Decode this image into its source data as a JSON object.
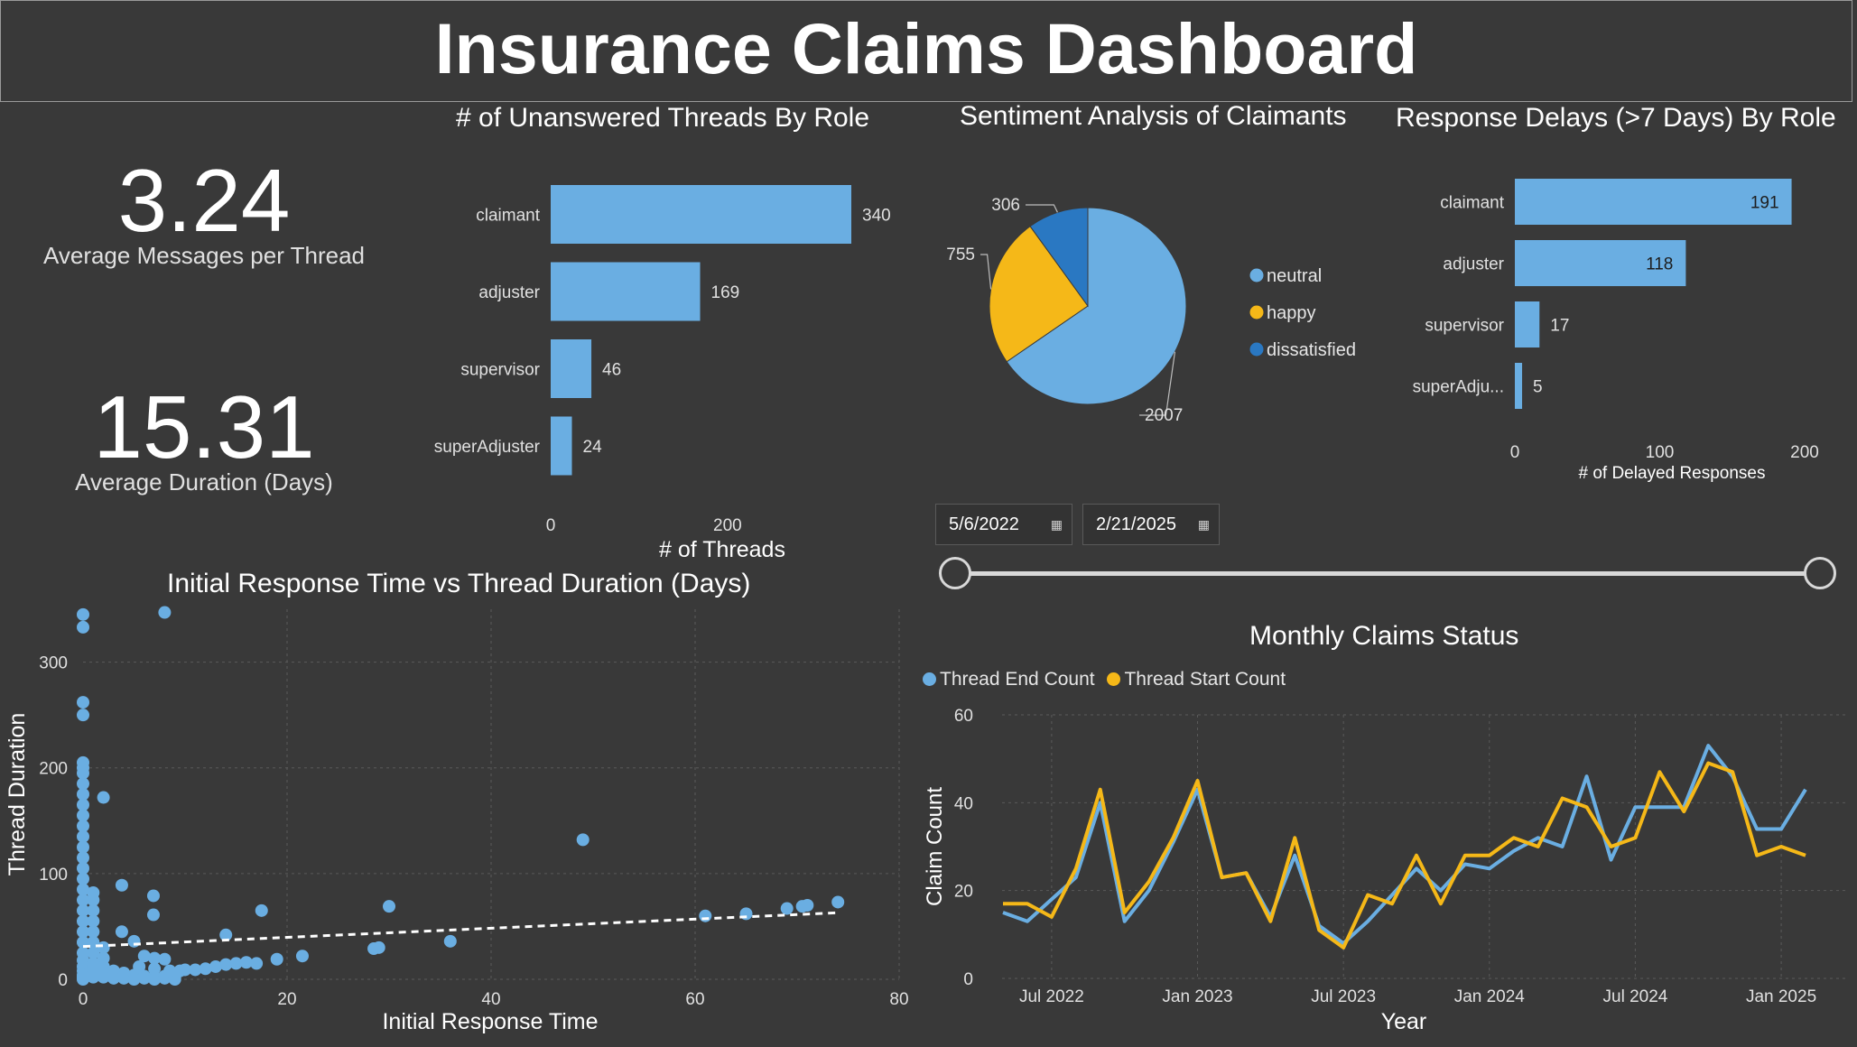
{
  "title": "Insurance Claims Dashboard",
  "kpis": [
    {
      "value": "3.24",
      "label": "Average Messages per Thread"
    },
    {
      "value": "15.31",
      "label": "Average Duration (Days)"
    }
  ],
  "colors": {
    "blue": "#6aaee2",
    "gold": "#f5b818",
    "darkblue": "#2a78c2",
    "background": "#393939"
  },
  "date_slicer": {
    "start": "5/6/2022",
    "end": "2/21/2025",
    "calendar_icon": "calendar-icon"
  },
  "chart_data": [
    {
      "id": "unanswered",
      "type": "bar",
      "orientation": "horizontal",
      "title": "# of Unanswered Threads By Role",
      "categories": [
        "claimant",
        "adjuster",
        "supervisor",
        "superAdjuster"
      ],
      "values": [
        340,
        169,
        46,
        24
      ],
      "xlabel": "# of Threads",
      "ylabel": "",
      "xlim": [
        0,
        340
      ],
      "xticks": [
        0,
        200
      ]
    },
    {
      "id": "sentiment",
      "type": "pie",
      "title": "Sentiment Analysis of Claimants",
      "categories": [
        "neutral",
        "happy",
        "dissatisfied"
      ],
      "values": [
        2007,
        755,
        306
      ],
      "legend_position": "right"
    },
    {
      "id": "delays",
      "type": "bar",
      "orientation": "horizontal",
      "title": "Response Delays (>7 Days) By Role",
      "categories": [
        "claimant",
        "adjuster",
        "supervisor",
        "superAdju..."
      ],
      "values": [
        191,
        118,
        17,
        5
      ],
      "xlabel": "# of Delayed Responses",
      "ylabel": "",
      "xlim": [
        0,
        200
      ],
      "xticks": [
        0,
        100,
        200
      ]
    },
    {
      "id": "scatter",
      "type": "scatter",
      "title": "Initial Response Time vs Thread Duration (Days)",
      "xlabel": "Initial Response Time",
      "ylabel": "Thread Duration",
      "xlim": [
        0,
        80
      ],
      "ylim": [
        0,
        350
      ],
      "xticks": [
        0,
        20,
        40,
        60,
        80
      ],
      "yticks": [
        0,
        100,
        200,
        300
      ],
      "grid": true,
      "trendline": {
        "x": [
          0,
          74
        ],
        "y": [
          31,
          63
        ]
      },
      "points": [
        [
          0,
          345
        ],
        [
          0,
          333
        ],
        [
          8,
          347
        ],
        [
          0,
          262
        ],
        [
          0,
          250
        ],
        [
          0,
          205
        ],
        [
          0,
          200
        ],
        [
          0,
          195
        ],
        [
          0,
          185
        ],
        [
          0,
          175
        ],
        [
          0,
          165
        ],
        [
          0,
          155
        ],
        [
          0,
          145
        ],
        [
          0,
          135
        ],
        [
          0,
          125
        ],
        [
          0,
          115
        ],
        [
          0,
          105
        ],
        [
          0,
          95
        ],
        [
          0,
          85
        ],
        [
          0,
          75
        ],
        [
          0,
          65
        ],
        [
          0,
          55
        ],
        [
          0,
          45
        ],
        [
          0,
          35
        ],
        [
          0,
          25
        ],
        [
          0,
          18
        ],
        [
          0,
          12
        ],
        [
          0,
          8
        ],
        [
          0,
          4
        ],
        [
          0,
          2
        ],
        [
          0,
          0
        ],
        [
          2,
          172
        ],
        [
          1,
          82
        ],
        [
          1,
          75
        ],
        [
          1,
          65
        ],
        [
          1,
          55
        ],
        [
          1,
          45
        ],
        [
          1,
          35
        ],
        [
          1,
          25
        ],
        [
          1,
          15
        ],
        [
          1,
          10
        ],
        [
          1,
          5
        ],
        [
          1,
          2
        ],
        [
          2,
          30
        ],
        [
          2,
          20
        ],
        [
          2,
          12
        ],
        [
          2,
          8
        ],
        [
          2,
          5
        ],
        [
          2,
          2
        ],
        [
          3,
          8
        ],
        [
          3,
          4
        ],
        [
          3,
          1
        ],
        [
          4,
          6
        ],
        [
          4,
          3
        ],
        [
          4,
          1
        ],
        [
          5,
          4
        ],
        [
          5,
          2
        ],
        [
          5,
          0
        ],
        [
          6,
          3
        ],
        [
          6,
          1
        ],
        [
          7,
          2
        ],
        [
          7,
          0
        ],
        [
          8,
          3
        ],
        [
          8,
          1
        ],
        [
          9,
          2
        ],
        [
          9,
          0
        ],
        [
          3.8,
          89
        ],
        [
          6.9,
          79
        ],
        [
          6.9,
          61
        ],
        [
          3.8,
          45
        ],
        [
          5,
          36
        ],
        [
          6,
          22
        ],
        [
          7,
          20
        ],
        [
          8,
          19
        ],
        [
          5.5,
          12
        ],
        [
          7,
          10
        ],
        [
          8.5,
          8
        ],
        [
          9.5,
          8
        ],
        [
          10,
          9
        ],
        [
          11,
          9
        ],
        [
          12,
          10
        ],
        [
          13,
          12
        ],
        [
          14,
          14
        ],
        [
          15,
          15
        ],
        [
          16,
          16
        ],
        [
          17,
          15
        ],
        [
          14,
          42
        ],
        [
          17.5,
          65
        ],
        [
          19,
          19
        ],
        [
          21.5,
          22
        ],
        [
          28.5,
          29
        ],
        [
          29,
          30
        ],
        [
          30,
          69
        ],
        [
          36,
          36
        ],
        [
          49,
          132
        ],
        [
          61,
          60
        ],
        [
          65,
          62
        ],
        [
          69,
          67
        ],
        [
          70.5,
          69
        ],
        [
          71,
          70
        ],
        [
          74,
          73
        ]
      ]
    },
    {
      "id": "monthly",
      "type": "line",
      "title": "Monthly Claims Status",
      "xlabel": "Year",
      "ylabel": "Claim Count",
      "ylim": [
        0,
        60
      ],
      "yticks": [
        0,
        20,
        40,
        60
      ],
      "x_tick_labels": [
        "Jul 2022",
        "Jan 2023",
        "Jul 2023",
        "Jan 2024",
        "Jul 2024",
        "Jan 2025"
      ],
      "x": [
        "2022-05",
        "2022-06",
        "2022-07",
        "2022-08",
        "2022-09",
        "2022-10",
        "2022-11",
        "2022-12",
        "2023-01",
        "2023-02",
        "2023-03",
        "2023-04",
        "2023-05",
        "2023-06",
        "2023-07",
        "2023-08",
        "2023-09",
        "2023-10",
        "2023-11",
        "2023-12",
        "2024-01",
        "2024-02",
        "2024-03",
        "2024-04",
        "2024-05",
        "2024-06",
        "2024-07",
        "2024-08",
        "2024-09",
        "2024-10",
        "2024-11",
        "2024-12",
        "2025-01",
        "2025-02"
      ],
      "legend_position": "top-left",
      "series": [
        {
          "name": "Thread End Count",
          "color": "#6aaee2",
          "values": [
            15,
            13,
            18,
            23,
            40,
            13,
            20,
            31,
            43,
            23,
            24,
            14,
            28,
            12,
            8,
            13,
            19,
            25,
            20,
            26,
            25,
            29,
            32,
            30,
            46,
            27,
            39,
            39,
            39,
            53,
            46,
            34,
            34,
            43
          ]
        },
        {
          "name": "Thread Start Count",
          "color": "#f5b818",
          "values": [
            17,
            17,
            14,
            25,
            43,
            15,
            22,
            32,
            45,
            23,
            24,
            13,
            32,
            11,
            7,
            19,
            17,
            28,
            17,
            28,
            28,
            32,
            30,
            41,
            39,
            30,
            32,
            47,
            38,
            49,
            47,
            28,
            30,
            28
          ]
        }
      ]
    }
  ]
}
